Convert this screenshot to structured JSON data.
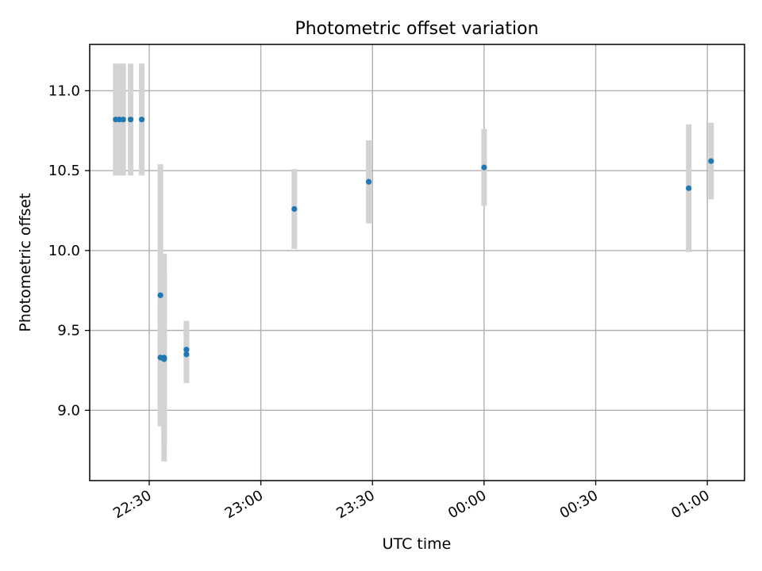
{
  "chart_data": {
    "type": "scatter",
    "title": "Photometric offset variation",
    "xlabel": "UTC time",
    "ylabel": "Photometric offset",
    "x_axis": {
      "kind": "time",
      "min": "22:14",
      "max": "01:10",
      "ticks": [
        "22:30",
        "23:00",
        "23:30",
        "00:00",
        "00:30",
        "01:00"
      ]
    },
    "y_axis": {
      "min": 8.56,
      "max": 11.29,
      "ticks": [
        9.0,
        9.5,
        10.0,
        10.5,
        11.0
      ],
      "tick_labels": [
        "9.0",
        "9.5",
        "10.0",
        "10.5",
        "11.0"
      ]
    },
    "grid": true,
    "points": [
      {
        "t": "22:21",
        "y": 10.82,
        "err": 0.35
      },
      {
        "t": "22:22",
        "y": 10.82,
        "err": 0.35
      },
      {
        "t": "22:23",
        "y": 10.82,
        "err": 0.35
      },
      {
        "t": "22:25",
        "y": 10.82,
        "err": 0.35
      },
      {
        "t": "22:28",
        "y": 10.82,
        "err": 0.35
      },
      {
        "t": "22:33",
        "y": 9.72,
        "err": 0.82
      },
      {
        "t": "22:33",
        "y": 9.33,
        "err": 0.35
      },
      {
        "t": "22:34",
        "y": 9.33,
        "err": 0.65
      },
      {
        "t": "22:34",
        "y": 9.32,
        "err": 0.53
      },
      {
        "t": "22:40",
        "y": 9.35,
        "err": 0.18
      },
      {
        "t": "22:40",
        "y": 9.38,
        "err": 0.18
      },
      {
        "t": "23:09",
        "y": 10.26,
        "err": 0.25
      },
      {
        "t": "23:29",
        "y": 10.43,
        "err": 0.26
      },
      {
        "t": "00:00",
        "y": 10.52,
        "err": 0.24
      },
      {
        "t": "00:55",
        "y": 10.39,
        "err": 0.4
      },
      {
        "t": "01:01",
        "y": 10.56,
        "err": 0.24
      }
    ]
  }
}
